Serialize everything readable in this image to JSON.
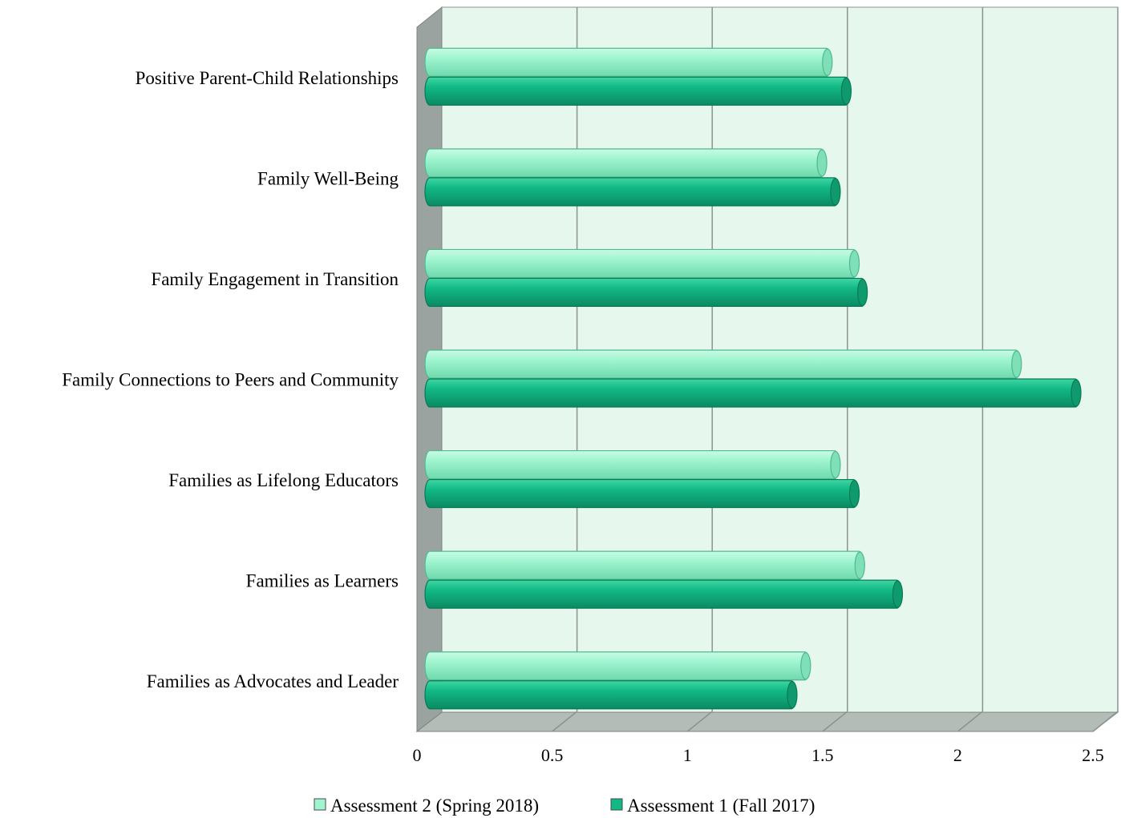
{
  "chart_data": {
    "type": "bar",
    "orientation": "horizontal",
    "style": "3d-cylinder",
    "categories": [
      "Positive Parent-Child Relationships",
      "Family Well-Being",
      "Family Engagement in Transition",
      "Family Connections to Peers and Community",
      "Families as Lifelong Educators",
      "Families as Learners",
      "Families as Advocates and Leader"
    ],
    "series": [
      {
        "name": "Assessment 2 (Spring 2018)",
        "color": "#9ff5cf",
        "values": [
          1.5,
          1.48,
          1.6,
          2.2,
          1.53,
          1.62,
          1.42
        ]
      },
      {
        "name": "Assessment 1 (Fall 2017)",
        "color": "#12b985",
        "values": [
          1.57,
          1.53,
          1.63,
          2.42,
          1.6,
          1.76,
          1.37
        ]
      }
    ],
    "x_ticks": [
      "0",
      "0.5",
      "1",
      "1.5",
      "2",
      "2.5"
    ],
    "xlim": [
      0,
      2.5
    ],
    "grid": true,
    "legend": "bottom-center",
    "colors": {
      "wall": "#e6f7ee",
      "wall_side": "#9aa39f",
      "floor": "#b4bcb8",
      "grid": "#8b938f"
    }
  }
}
